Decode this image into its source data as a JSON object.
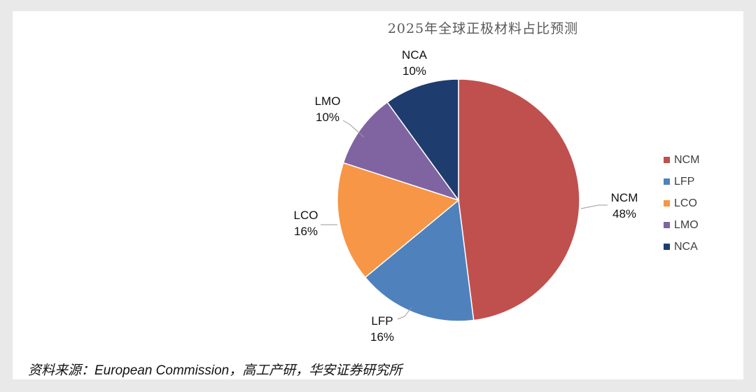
{
  "chart_data": {
    "type": "pie",
    "title": "2025年全球正极材料占比预测",
    "slices": [
      {
        "name": "NCM",
        "value": 48,
        "label": "48%",
        "color": "#c0504d"
      },
      {
        "name": "LFP",
        "value": 16,
        "label": "16%",
        "color": "#4f81bd"
      },
      {
        "name": "LCO",
        "value": 16,
        "label": "16%",
        "color": "#f79646"
      },
      {
        "name": "LMO",
        "value": 10,
        "label": "10%",
        "color": "#8064a2"
      },
      {
        "name": "NCA",
        "value": 10,
        "label": "10%",
        "color": "#1f3c6e"
      }
    ],
    "legend_position": "right",
    "start": "top, clockwise"
  },
  "source": "资料来源：European Commission，高工产研，华安证券研究所"
}
